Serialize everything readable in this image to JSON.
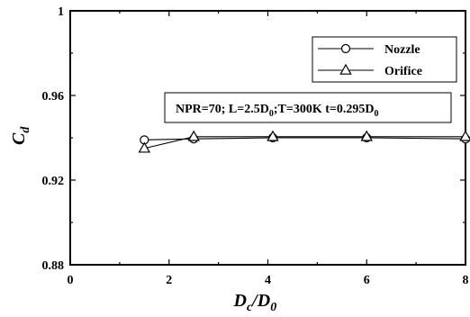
{
  "chart_data": {
    "type": "line",
    "title": "",
    "xlabel": {
      "main": "D",
      "main_sub": "c",
      "sep": "/",
      "den": "D",
      "den_sub": "0"
    },
    "ylabel": {
      "main": "C",
      "sub": "d"
    },
    "xlim": [
      0,
      8
    ],
    "ylim": [
      0.88,
      1.0
    ],
    "xticks": [
      0,
      2,
      4,
      6,
      8
    ],
    "xtick_labels": [
      "0",
      "2",
      "4",
      "6",
      "8"
    ],
    "yticks": [
      0.88,
      0.92,
      0.96,
      1.0
    ],
    "ytick_labels": [
      "0.88",
      "0.92",
      "0.96",
      "1"
    ],
    "grid": false,
    "legend_position": "top-right",
    "series": [
      {
        "name": "Nozzle",
        "marker": "circle",
        "color": "#000000",
        "x": [
          1.5,
          2.5,
          4.1,
          6.0,
          8.0
        ],
        "y": [
          0.939,
          0.9395,
          0.94,
          0.94,
          0.9395
        ]
      },
      {
        "name": "Orifice",
        "marker": "triangle",
        "color": "#000000",
        "x": [
          1.5,
          2.5,
          4.1,
          6.0,
          8.0
        ],
        "y": [
          0.935,
          0.9405,
          0.9405,
          0.9405,
          0.9405
        ]
      }
    ],
    "annotation": {
      "parts": [
        {
          "t": "NPR=70; L=2.5D",
          "sub": false
        },
        {
          "t": "0",
          "sub": true
        },
        {
          "t": ";T=300K t=0.295D",
          "sub": false
        },
        {
          "t": "0",
          "sub": true
        }
      ]
    }
  }
}
